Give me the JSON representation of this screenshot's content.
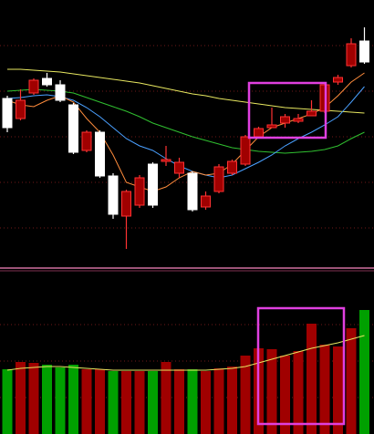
{
  "chart_data": [
    {
      "type": "candlestick",
      "up_color": "#ff3232",
      "up_fill": "#a00000",
      "down_color": "#ffffff",
      "ylim": [
        0,
        300
      ],
      "yticks": [
        50,
        100,
        150,
        200,
        250
      ],
      "grid": true,
      "open": [
        192,
        170,
        198,
        214,
        207,
        185,
        135,
        155,
        107,
        63,
        75,
        120,
        123,
        110,
        110,
        73,
        90,
        110,
        120,
        150,
        160,
        165,
        167,
        173,
        178,
        210,
        228,
        255
      ],
      "close": [
        160,
        190,
        212,
        207,
        190,
        133,
        155,
        107,
        65,
        90,
        105,
        75,
        125,
        122,
        70,
        85,
        117,
        123,
        150,
        159,
        163,
        172,
        170,
        178,
        207,
        215,
        252,
        232
      ],
      "high": [
        195,
        202,
        214,
        220,
        212,
        187,
        157,
        157,
        110,
        92,
        108,
        122,
        140,
        127,
        112,
        90,
        120,
        125,
        152,
        161,
        182,
        175,
        175,
        190,
        209,
        218,
        258,
        270
      ],
      "low": [
        155,
        168,
        196,
        205,
        188,
        131,
        133,
        105,
        60,
        27,
        72,
        72,
        118,
        105,
        68,
        70,
        88,
        108,
        118,
        148,
        160,
        160,
        165,
        173,
        176,
        207,
        226,
        230
      ],
      "moving_averages": [
        {
          "color": "#e8e860",
          "values": [
            224,
            224,
            223,
            222,
            221,
            219,
            217,
            215,
            213,
            211,
            209,
            206,
            203,
            200,
            197,
            195,
            192,
            190,
            188,
            186,
            184,
            182,
            181,
            180,
            179,
            178,
            177,
            176
          ]
        },
        {
          "color": "#30c030",
          "values": [
            200,
            201,
            202,
            201,
            200,
            198,
            193,
            188,
            183,
            178,
            172,
            165,
            160,
            155,
            150,
            146,
            142,
            138,
            136,
            134,
            133,
            132,
            133,
            134,
            136,
            140,
            148,
            155
          ]
        },
        {
          "color": "#4aa0ff",
          "values": [
            192,
            193,
            195,
            196,
            194,
            190,
            182,
            172,
            160,
            148,
            140,
            135,
            126,
            118,
            112,
            108,
            105,
            108,
            115,
            122,
            130,
            140,
            148,
            155,
            163,
            172,
            188,
            205
          ]
        },
        {
          "color": "#ff8c3c",
          "values": [
            190,
            185,
            183,
            190,
            195,
            188,
            170,
            155,
            130,
            100,
            95,
            90,
            95,
            105,
            112,
            108,
            110,
            120,
            135,
            150,
            160,
            165,
            170,
            175,
            182,
            195,
            210,
            220
          ]
        }
      ]
    },
    {
      "type": "bar",
      "ylim": [
        0,
        176
      ],
      "yticks": [
        40,
        80,
        120
      ],
      "grid": true,
      "values": [
        71,
        79,
        78,
        76,
        73,
        76,
        71,
        71,
        69,
        69,
        69,
        69,
        79,
        71,
        71,
        69,
        72,
        74,
        86,
        94,
        93,
        86,
        91,
        121,
        98,
        96,
        116,
        136
      ],
      "colors": [
        "#00a000",
        "#a00000",
        "#a00000",
        "#00a000",
        "#00a000",
        "#00a000",
        "#a00000",
        "#a00000",
        "#00a000",
        "#a00000",
        "#a00000",
        "#00a000",
        "#a00000",
        "#a00000",
        "#00a000",
        "#a00000",
        "#a00000",
        "#a00000",
        "#a00000",
        "#a00000",
        "#a00000",
        "#a00000",
        "#a00000",
        "#a00000",
        "#a00000",
        "#a00000",
        "#a00000",
        "#00a000"
      ],
      "moving_averages": [
        {
          "color": "#e8e860",
          "values": [
            70,
            72,
            73,
            74,
            74,
            73,
            72,
            71,
            70,
            70,
            70,
            70,
            70,
            70,
            70,
            70,
            71,
            72,
            74,
            78,
            82,
            86,
            90,
            94,
            97,
            100,
            104,
            108
          ]
        }
      ]
    }
  ]
}
